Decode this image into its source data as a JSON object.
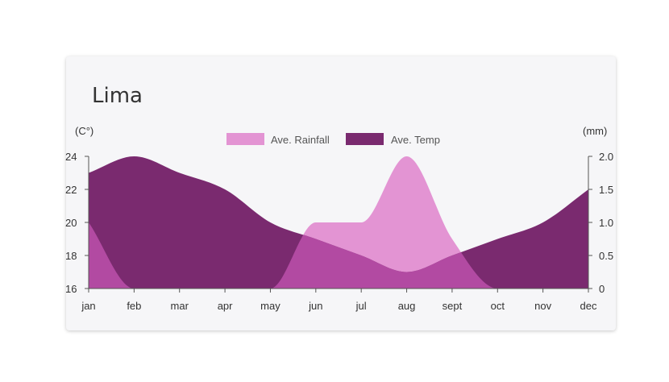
{
  "card": {
    "title": "Lima"
  },
  "chart_data": {
    "type": "area",
    "title": "Lima",
    "categories": [
      "jan",
      "feb",
      "mar",
      "apr",
      "may",
      "jun",
      "jul",
      "aug",
      "sept",
      "oct",
      "nov",
      "dec"
    ],
    "series": [
      {
        "name": "Ave. Rainfall",
        "axis": "right",
        "color": "#e394d3",
        "values": [
          1.0,
          0.0,
          0.0,
          0.0,
          0.0,
          1.0,
          1.0,
          2.0,
          0.75,
          0.0,
          0.0,
          0.0
        ]
      },
      {
        "name": "Ave. Temp",
        "axis": "left",
        "color": "#7a2a6f",
        "values": [
          23,
          24,
          23,
          22,
          20,
          19,
          18,
          17,
          18,
          19,
          20,
          22
        ]
      }
    ],
    "y_left": {
      "label": "(C°)",
      "range": [
        16,
        24
      ],
      "ticks": [
        "16",
        "18",
        "20",
        "22",
        "24"
      ],
      "tick_values": [
        16,
        18,
        20,
        22,
        24
      ]
    },
    "y_right": {
      "label": "(mm)",
      "range": [
        0,
        2.0
      ],
      "ticks": [
        "0",
        "0.5",
        "1.0",
        "1.5",
        "2.0"
      ],
      "tick_values": [
        0,
        0.5,
        1.0,
        1.5,
        2.0
      ]
    },
    "grid": false,
    "legend_position": "top-center",
    "overlap_color": "#b24aa2"
  }
}
